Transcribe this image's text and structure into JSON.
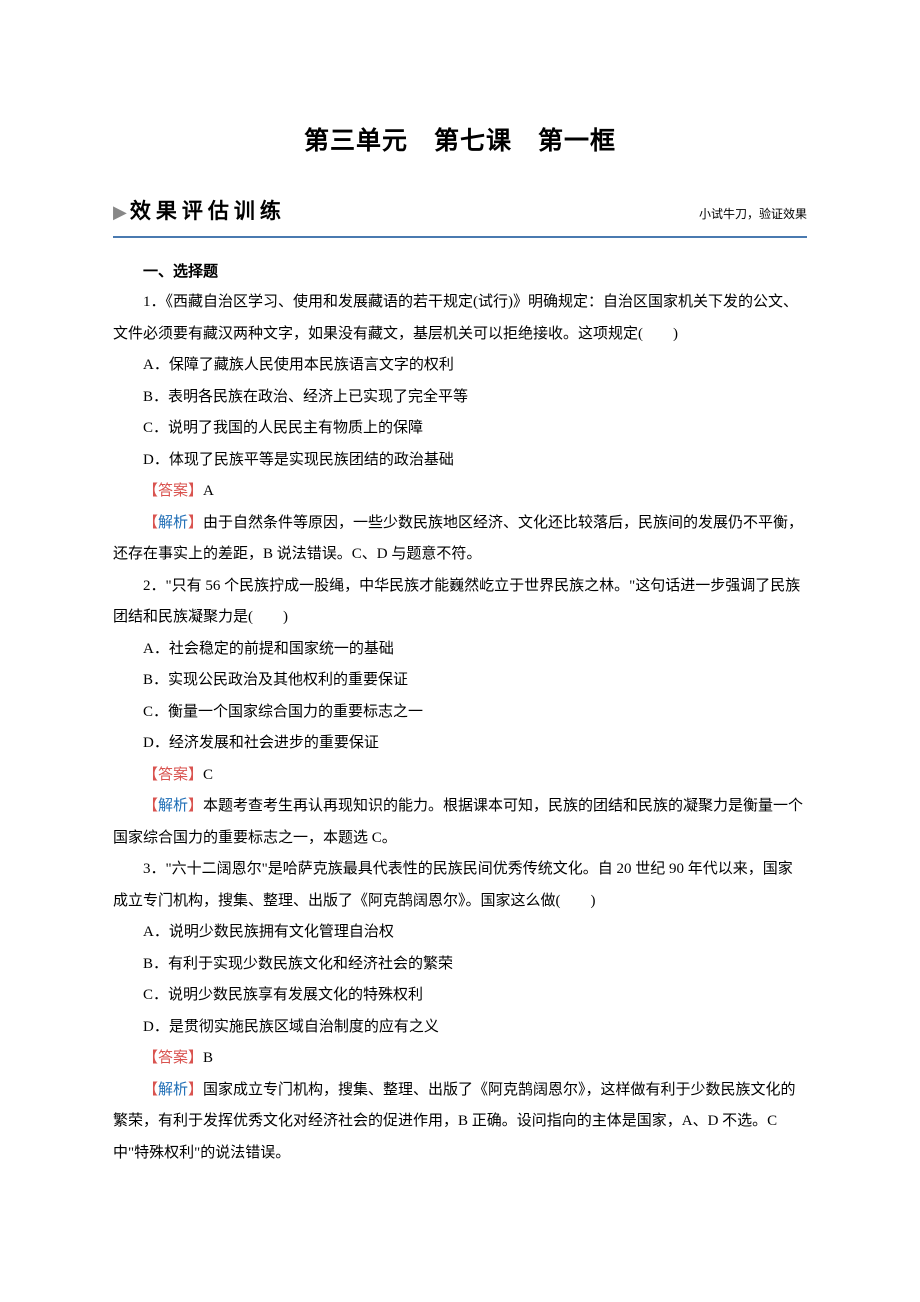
{
  "page_title": "第三单元　第七课　第一框",
  "eval_header": {
    "title": "效果评估训练",
    "subtitle": "小试牛刀，验证效果"
  },
  "section_label": "一、选择题",
  "colors": {
    "answer_label": "#d9534f",
    "analysis_label": "#1e6db5",
    "divider": "#4a7ab0",
    "background": "#ffffff",
    "text": "#000000"
  },
  "typography": {
    "body_fontsize": 15,
    "title_fontsize": 25,
    "eval_title_fontsize": 21,
    "eval_subtitle_fontsize": 12,
    "line_height": 2.1
  },
  "label_answer": "【答案】",
  "label_analysis_open": "【",
  "label_analysis_text": "解析",
  "label_analysis_close": "】",
  "questions": [
    {
      "number": "1",
      "stem": "1．《西藏自治区学习、使用和发展藏语的若干规定(试行)》明确规定：自治区国家机关下发的公文、文件必须要有藏汉两种文字，如果没有藏文，基层机关可以拒绝接收。这项规定(　　)",
      "options": [
        "A．保障了藏族人民使用本民族语言文字的权利",
        "B．表明各民族在政治、经济上已实现了完全平等",
        "C．说明了我国的人民民主有物质上的保障",
        "D．体现了民族平等是实现民族团结的政治基础"
      ],
      "answer": "A",
      "analysis": "由于自然条件等原因，一些少数民族地区经济、文化还比较落后，民族间的发展仍不平衡，还存在事实上的差距，B 说法错误。C、D 与题意不符。"
    },
    {
      "number": "2",
      "stem": "2．\"只有 56 个民族拧成一股绳，中华民族才能巍然屹立于世界民族之林。\"这句话进一步强调了民族团结和民族凝聚力是(　　)",
      "options": [
        "A．社会稳定的前提和国家统一的基础",
        "B．实现公民政治及其他权利的重要保证",
        "C．衡量一个国家综合国力的重要标志之一",
        "D．经济发展和社会进步的重要保证"
      ],
      "answer": "C",
      "analysis": "本题考查考生再认再现知识的能力。根据课本可知，民族的团结和民族的凝聚力是衡量一个国家综合国力的重要标志之一，本题选 C。"
    },
    {
      "number": "3",
      "stem": "3．\"六十二阔恩尔\"是哈萨克族最具代表性的民族民间优秀传统文化。自 20 世纪 90 年代以来，国家成立专门机构，搜集、整理、出版了《阿克鹄阔恩尔》。国家这么做(　　)",
      "options": [
        "A．说明少数民族拥有文化管理自治权",
        "B．有利于实现少数民族文化和经济社会的繁荣",
        "C．说明少数民族享有发展文化的特殊权利",
        "D．是贯彻实施民族区域自治制度的应有之义"
      ],
      "answer": "B",
      "analysis": "国家成立专门机构，搜集、整理、出版了《阿克鹄阔恩尔》，这样做有利于少数民族文化的繁荣，有利于发挥优秀文化对经济社会的促进作用，B 正确。设问指向的主体是国家，A、D 不选。C 中\"特殊权利\"的说法错误。"
    }
  ]
}
